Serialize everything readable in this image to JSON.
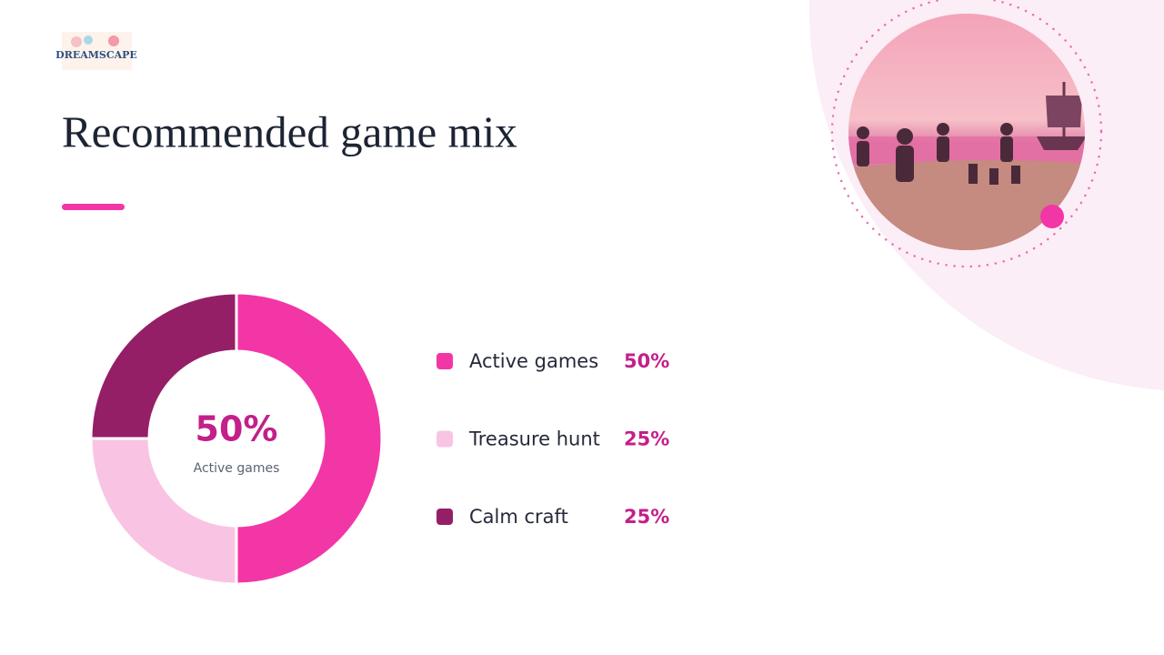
{
  "logo": "DREAMSCAPE",
  "chart_data": {
    "type": "pie",
    "title": "Recommended game mix",
    "categories": [
      "Active games",
      "Treasure hunt",
      "Calm craft"
    ],
    "values": [
      50,
      25,
      25
    ],
    "value_labels": [
      "50%",
      "25%",
      "25%"
    ],
    "colors": [
      "#f236a6",
      "#f9c4e4",
      "#951f67"
    ]
  }
}
